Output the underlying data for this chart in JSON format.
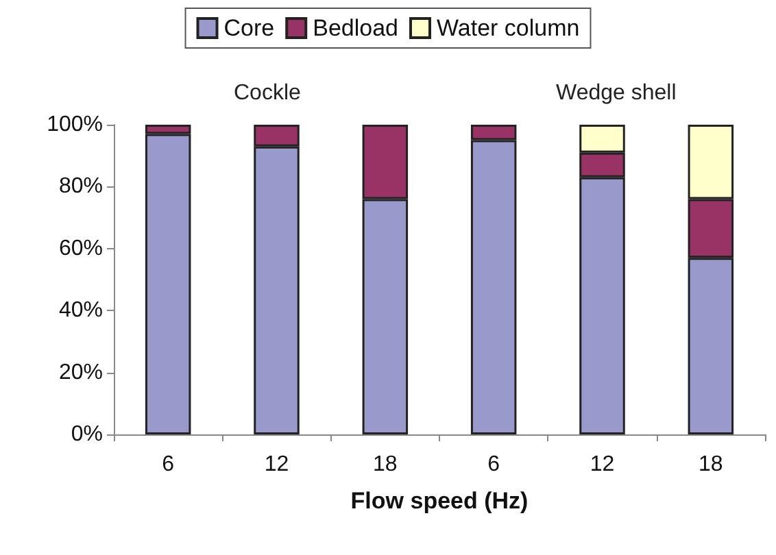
{
  "chart_data": {
    "type": "bar",
    "stacked": true,
    "xlabel": "Flow speed (Hz)",
    "categories": [
      "6",
      "12",
      "18",
      "6",
      "12",
      "18"
    ],
    "series": [
      {
        "name": "Core",
        "color": "#9999cc",
        "values": [
          97,
          93,
          76,
          95,
          83,
          57
        ]
      },
      {
        "name": "Bedload",
        "color": "#993366",
        "values": [
          3,
          7,
          24,
          5,
          8,
          19
        ]
      },
      {
        "name": "Water column",
        "color": "#ffffcc",
        "values": [
          0,
          0,
          0,
          0,
          9,
          24
        ]
      }
    ],
    "ylim": [
      0,
      100
    ],
    "yticks": [
      {
        "value": 0,
        "label": "0%"
      },
      {
        "value": 20,
        "label": "20%"
      },
      {
        "value": 40,
        "label": "40%"
      },
      {
        "value": 60,
        "label": "60%"
      },
      {
        "value": 80,
        "label": "80%"
      },
      {
        "value": 100,
        "label": "100%"
      }
    ],
    "annotations": [
      "Cockle",
      "Wedge shell"
    ],
    "grid": false,
    "legend": "top"
  }
}
